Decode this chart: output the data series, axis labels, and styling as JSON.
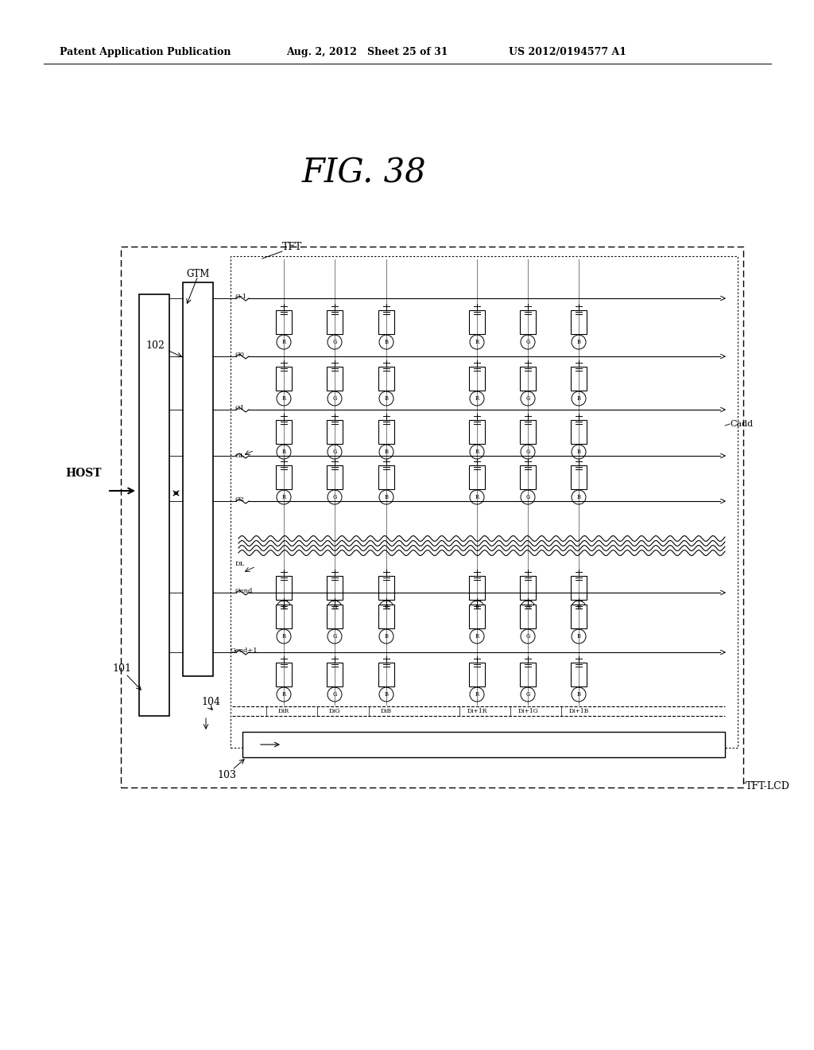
{
  "bg_color": "#ffffff",
  "header_left": "Patent Application Publication",
  "header_mid": "Aug. 2, 2012   Sheet 25 of 31",
  "header_right": "US 2012/0194577 A1",
  "fig_title": "FIG. 38"
}
